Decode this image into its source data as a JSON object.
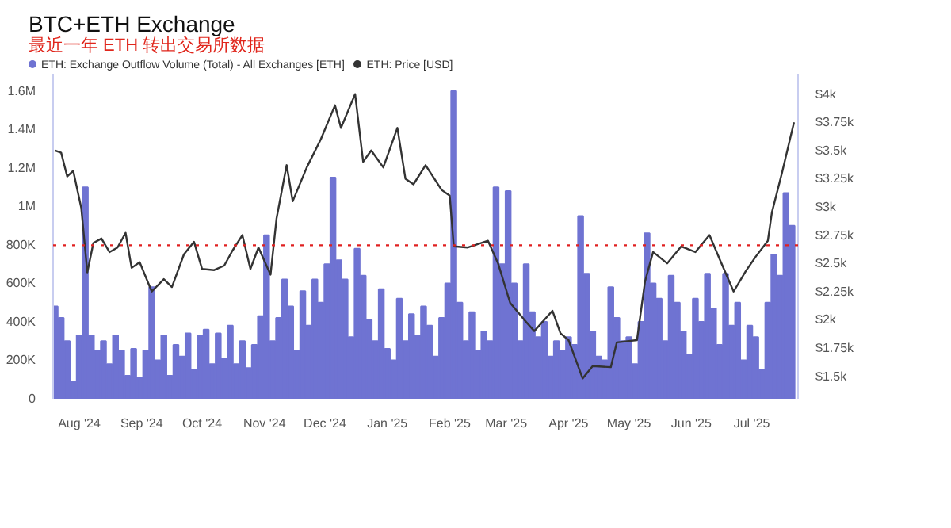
{
  "chart_data": {
    "type": "bar",
    "title": "BTC+ETH Exchange",
    "subtitle": "最近一年 ETH 转出交易所数据",
    "x": [
      "2024-07-20",
      "2024-07-23",
      "2024-07-26",
      "2024-07-29",
      "2024-08-01",
      "2024-08-04",
      "2024-08-07",
      "2024-08-10",
      "2024-08-13",
      "2024-08-16",
      "2024-08-19",
      "2024-08-22",
      "2024-08-25",
      "2024-08-28",
      "2024-08-31",
      "2024-09-03",
      "2024-09-06",
      "2024-09-09",
      "2024-09-12",
      "2024-09-15",
      "2024-09-18",
      "2024-09-21",
      "2024-09-24",
      "2024-09-27",
      "2024-09-30",
      "2024-10-03",
      "2024-10-06",
      "2024-10-09",
      "2024-10-12",
      "2024-10-15",
      "2024-10-18",
      "2024-10-21",
      "2024-10-24",
      "2024-10-27",
      "2024-10-30",
      "2024-11-02",
      "2024-11-05",
      "2024-11-08",
      "2024-11-11",
      "2024-11-14",
      "2024-11-17",
      "2024-11-20",
      "2024-11-23",
      "2024-11-26",
      "2024-11-29",
      "2024-12-02",
      "2024-12-05",
      "2024-12-08",
      "2024-12-11",
      "2024-12-14",
      "2024-12-17",
      "2024-12-20",
      "2024-12-23",
      "2024-12-26",
      "2024-12-29",
      "2025-01-01",
      "2025-01-04",
      "2025-01-07",
      "2025-01-10",
      "2025-01-13",
      "2025-01-16",
      "2025-01-19",
      "2025-01-22",
      "2025-01-25",
      "2025-01-28",
      "2025-01-31",
      "2025-02-03",
      "2025-02-06",
      "2025-02-09",
      "2025-02-12",
      "2025-02-15",
      "2025-02-18",
      "2025-02-21",
      "2025-02-24",
      "2025-02-27",
      "2025-03-02",
      "2025-03-05",
      "2025-03-08",
      "2025-03-11",
      "2025-03-14",
      "2025-03-17",
      "2025-03-20",
      "2025-03-23",
      "2025-03-26",
      "2025-03-29",
      "2025-04-01",
      "2025-04-04",
      "2025-04-07",
      "2025-04-10",
      "2025-04-13",
      "2025-04-16",
      "2025-04-19",
      "2025-04-22",
      "2025-04-25",
      "2025-04-28",
      "2025-05-01",
      "2025-05-04",
      "2025-05-07",
      "2025-05-10",
      "2025-05-13",
      "2025-05-16",
      "2025-05-19",
      "2025-05-22",
      "2025-05-25",
      "2025-05-28",
      "2025-05-31",
      "2025-06-03",
      "2025-06-06",
      "2025-06-09",
      "2025-06-12",
      "2025-06-15",
      "2025-06-18",
      "2025-06-21",
      "2025-06-24",
      "2025-06-27",
      "2025-06-30",
      "2025-07-03",
      "2025-07-06",
      "2025-07-09",
      "2025-07-12",
      "2025-07-15",
      "2025-07-18",
      "2025-07-21"
    ],
    "series": [
      {
        "name": "ETH: Exchange Outflow Volume (Total) - All Exchanges [ETH]",
        "color": "#6f73d2",
        "values": [
          480000,
          420000,
          300000,
          90000,
          330000,
          1100000,
          330000,
          250000,
          300000,
          180000,
          330000,
          250000,
          120000,
          260000,
          110000,
          250000,
          580000,
          200000,
          330000,
          120000,
          280000,
          220000,
          340000,
          150000,
          330000,
          360000,
          180000,
          340000,
          210000,
          380000,
          180000,
          300000,
          160000,
          280000,
          430000,
          850000,
          300000,
          420000,
          620000,
          480000,
          250000,
          560000,
          380000,
          620000,
          500000,
          700000,
          1150000,
          720000,
          620000,
          320000,
          780000,
          640000,
          410000,
          300000,
          570000,
          260000,
          200000,
          520000,
          300000,
          440000,
          330000,
          480000,
          380000,
          220000,
          420000,
          600000,
          1600000,
          500000,
          300000,
          450000,
          250000,
          350000,
          300000,
          1100000,
          700000,
          1080000,
          600000,
          300000,
          700000,
          450000,
          320000,
          400000,
          220000,
          300000,
          250000,
          320000,
          280000,
          950000,
          650000,
          350000,
          220000,
          200000,
          580000,
          420000,
          300000,
          320000,
          180000,
          400000,
          860000,
          600000,
          520000,
          300000,
          640000,
          500000,
          350000,
          230000,
          520000,
          400000,
          650000,
          470000,
          280000,
          650000,
          380000,
          500000,
          200000,
          380000,
          320000,
          150000,
          500000,
          750000,
          640000,
          1070000,
          900000
        ]
      },
      {
        "name": "ETH: Price [USD]",
        "type": "line",
        "axis": "y2",
        "color": "#333333",
        "x": [
          "2024-07-20",
          "2024-07-23",
          "2024-07-26",
          "2024-07-29",
          "2024-08-02",
          "2024-08-05",
          "2024-08-08",
          "2024-08-12",
          "2024-08-16",
          "2024-08-20",
          "2024-08-24",
          "2024-08-27",
          "2024-08-31",
          "2024-09-06",
          "2024-09-12",
          "2024-09-16",
          "2024-09-22",
          "2024-09-27",
          "2024-10-01",
          "2024-10-07",
          "2024-10-12",
          "2024-10-16",
          "2024-10-21",
          "2024-10-25",
          "2024-10-29",
          "2024-11-04",
          "2024-11-07",
          "2024-11-12",
          "2024-11-15",
          "2024-11-22",
          "2024-11-29",
          "2024-12-06",
          "2024-12-09",
          "2024-12-16",
          "2024-12-20",
          "2024-12-24",
          "2024-12-30",
          "2025-01-06",
          "2025-01-10",
          "2025-01-14",
          "2025-01-20",
          "2025-01-28",
          "2025-02-01",
          "2025-02-03",
          "2025-02-10",
          "2025-02-20",
          "2025-02-25",
          "2025-03-03",
          "2025-03-10",
          "2025-03-15",
          "2025-03-24",
          "2025-03-28",
          "2025-04-01",
          "2025-04-08",
          "2025-04-13",
          "2025-04-22",
          "2025-04-25",
          "2025-05-05",
          "2025-05-09",
          "2025-05-13",
          "2025-05-20",
          "2025-05-27",
          "2025-06-03",
          "2025-06-10",
          "2025-06-15",
          "2025-06-22",
          "2025-06-28",
          "2025-07-03",
          "2025-07-09",
          "2025-07-11",
          "2025-07-16",
          "2025-07-20",
          "2025-07-22"
        ],
        "values": [
          3500,
          3480,
          3270,
          3320,
          2990,
          2420,
          2680,
          2720,
          2600,
          2640,
          2770,
          2460,
          2510,
          2250,
          2360,
          2290,
          2580,
          2690,
          2450,
          2440,
          2480,
          2610,
          2750,
          2450,
          2640,
          2400,
          2900,
          3370,
          3050,
          3350,
          3600,
          3900,
          3700,
          4000,
          3400,
          3500,
          3350,
          3700,
          3250,
          3200,
          3370,
          3150,
          3100,
          2650,
          2640,
          2700,
          2500,
          2150,
          2000,
          1900,
          2080,
          1880,
          1820,
          1480,
          1590,
          1580,
          1800,
          1820,
          2340,
          2600,
          2500,
          2650,
          2600,
          2750,
          2540,
          2250,
          2430,
          2560,
          2700,
          2950,
          3300,
          3600,
          3750
        ]
      }
    ],
    "xlim": [
      "2024-07-19",
      "2025-07-24"
    ],
    "xticks": [
      {
        "value": "2024-08-01",
        "label": "Aug '24"
      },
      {
        "value": "2024-09-01",
        "label": "Sep '24"
      },
      {
        "value": "2024-10-01",
        "label": "Oct '24"
      },
      {
        "value": "2024-11-01",
        "label": "Nov '24"
      },
      {
        "value": "2024-12-01",
        "label": "Dec '24"
      },
      {
        "value": "2025-01-01",
        "label": "Jan '25"
      },
      {
        "value": "2025-02-01",
        "label": "Feb '25"
      },
      {
        "value": "2025-03-01",
        "label": "Mar '25"
      },
      {
        "value": "2025-04-01",
        "label": "Apr '25"
      },
      {
        "value": "2025-05-01",
        "label": "May '25"
      },
      {
        "value": "2025-06-01",
        "label": "Jun '25"
      },
      {
        "value": "2025-07-01",
        "label": "Jul '25"
      }
    ],
    "ylim": [
      0,
      1690000
    ],
    "yticks": [
      0,
      {
        "value": 200000,
        "label": "200K"
      },
      {
        "value": 400000,
        "label": "400K"
      },
      {
        "value": 600000,
        "label": "600K"
      },
      {
        "value": 800000,
        "label": "800K"
      },
      {
        "value": 1000000,
        "label": "1M"
      },
      {
        "value": 1200000,
        "label": "1.2M"
      },
      {
        "value": 1400000,
        "label": "1.4M"
      },
      {
        "value": 1600000,
        "label": "1.6M"
      }
    ],
    "y2lim": [
      1300,
      4180
    ],
    "y2ticks": [
      {
        "value": 1500,
        "label": "$1.5k"
      },
      {
        "value": 1750,
        "label": "$1.75k"
      },
      {
        "value": 2000,
        "label": "$2k"
      },
      {
        "value": 2250,
        "label": "$2.25k"
      },
      {
        "value": 2500,
        "label": "$2.5k"
      },
      {
        "value": 2750,
        "label": "$2.75k"
      },
      {
        "value": 3000,
        "label": "$3k"
      },
      {
        "value": 3250,
        "label": "$3.25k"
      },
      {
        "value": 3500,
        "label": "$3.5k"
      },
      {
        "value": 3750,
        "label": "$3.75k"
      },
      {
        "value": 4000,
        "label": "$4k"
      }
    ],
    "ref_lines": [
      {
        "axis": "y2",
        "value": 2660,
        "color": "#e02020",
        "line_style": "dotted"
      }
    ],
    "legend": "top left",
    "grid": false
  }
}
